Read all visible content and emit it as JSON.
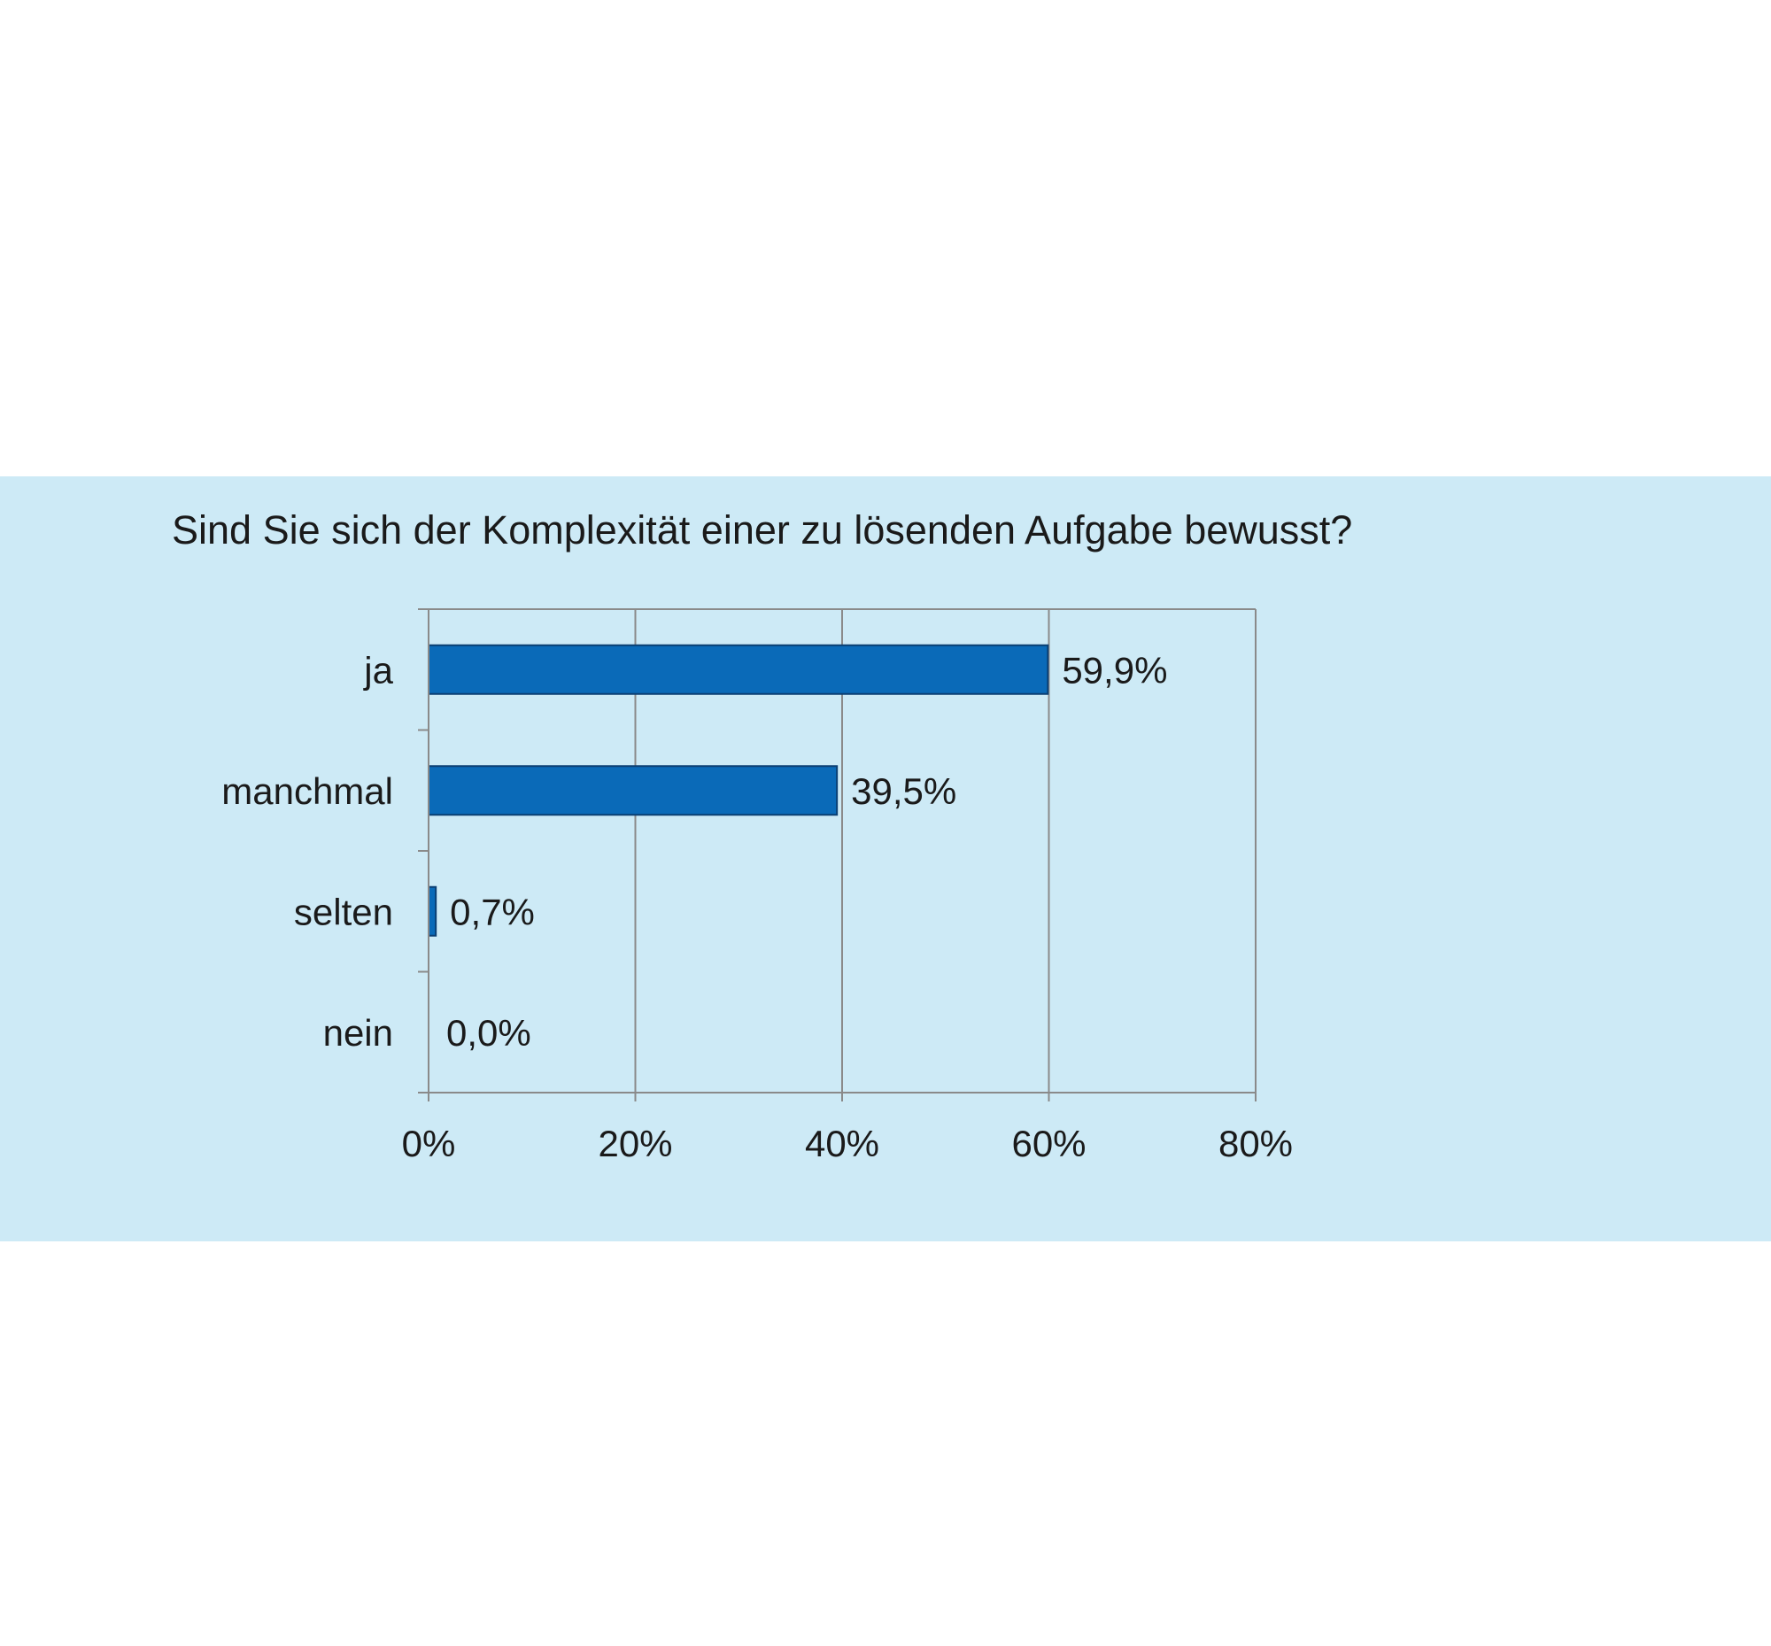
{
  "colors": {
    "panel_background": "#cdeaf6",
    "bar_fill": "#0a6ab8",
    "bar_stroke": "#0b3f73",
    "grid": "#8a8a8a",
    "axis": "#8a8a8a",
    "text": "#1a1a1a"
  },
  "chart_data": {
    "type": "bar",
    "orientation": "horizontal",
    "title": "Sind Sie sich der Komplexität einer zu lösenden Aufgabe bewusst?",
    "categories": [
      "ja",
      "manchmal",
      "selten",
      "nein"
    ],
    "values": [
      59.9,
      39.5,
      0.7,
      0.0
    ],
    "data_labels": [
      "59,9%",
      "39,5%",
      "0,7%",
      "0,0%"
    ],
    "xlim": [
      0,
      80
    ],
    "x_ticks": [
      0,
      20,
      40,
      60,
      80
    ],
    "x_tick_labels": [
      "0%",
      "20%",
      "40%",
      "60%",
      "80%"
    ],
    "xlabel": "",
    "ylabel": "",
    "grid": "vertical",
    "legend": "none"
  }
}
